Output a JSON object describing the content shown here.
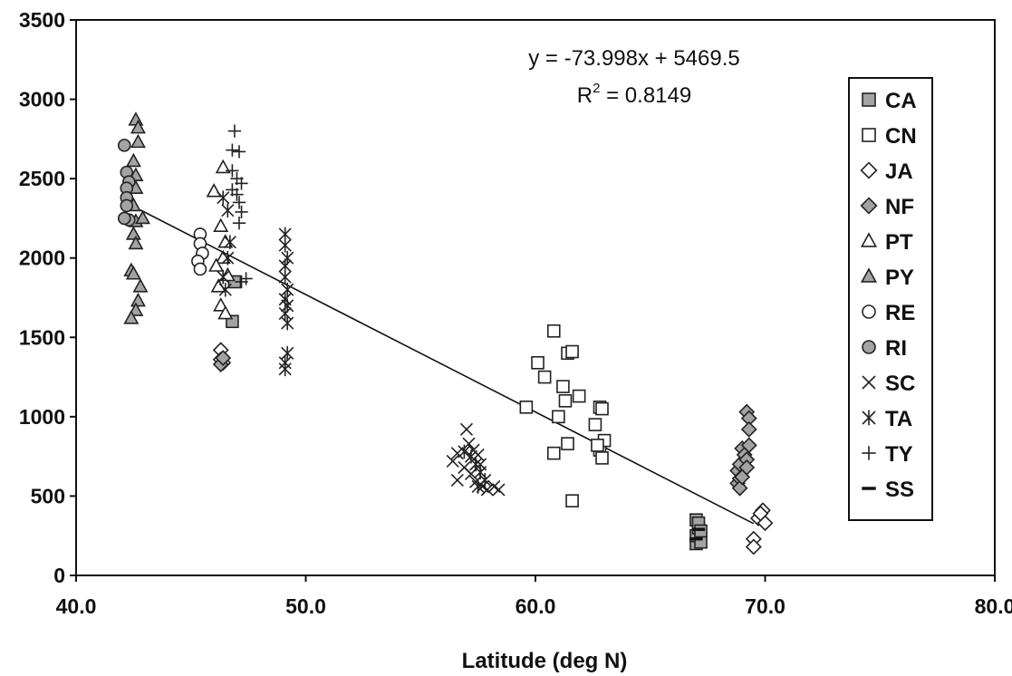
{
  "chart_data": {
    "type": "scatter",
    "title": "",
    "xlabel": "Latitude (deg N)",
    "ylabel": "",
    "xlim": [
      40,
      80
    ],
    "ylim": [
      0,
      3500
    ],
    "x_ticks": [
      "40.0",
      "50.0",
      "60.0",
      "70.0",
      "80.0"
    ],
    "y_ticks": [
      "0",
      "500",
      "1000",
      "1500",
      "2000",
      "2500",
      "3000",
      "3500"
    ],
    "x_tick_values": [
      40,
      50,
      60,
      70,
      80
    ],
    "y_tick_values": [
      0,
      500,
      1000,
      1500,
      2000,
      2500,
      3000,
      3500
    ],
    "grid": false,
    "legend_position": "right",
    "trendline": {
      "slope": -73.998,
      "intercept": 5469.5,
      "x_range": [
        42.8,
        69.5
      ],
      "equation_label": "y = -73.998x + 5469.5",
      "r2_label_prefix": "R",
      "r2_label_sup": "2",
      "r2_label_suffix": " = 0.8149"
    },
    "series": [
      {
        "name": "CA",
        "marker": "square-filled",
        "points": [
          [
            46.8,
            1600
          ],
          [
            46.9,
            1850
          ],
          [
            67.0,
            200
          ],
          [
            67.0,
            250
          ],
          [
            67.1,
            300
          ],
          [
            67.0,
            350
          ],
          [
            67.2,
            210
          ],
          [
            67.1,
            330
          ],
          [
            67.2,
            280
          ]
        ]
      },
      {
        "name": "CN",
        "marker": "square-open",
        "points": [
          [
            59.6,
            1060
          ],
          [
            60.1,
            1340
          ],
          [
            60.4,
            1250
          ],
          [
            60.8,
            1540
          ],
          [
            61.0,
            1000
          ],
          [
            60.8,
            770
          ],
          [
            61.4,
            830
          ],
          [
            61.2,
            1190
          ],
          [
            61.3,
            1100
          ],
          [
            61.4,
            1400
          ],
          [
            61.6,
            1410
          ],
          [
            61.9,
            1130
          ],
          [
            61.6,
            470
          ],
          [
            62.6,
            950
          ],
          [
            62.8,
            1060
          ],
          [
            62.9,
            1050
          ],
          [
            62.8,
            790
          ],
          [
            62.9,
            740
          ],
          [
            63.0,
            850
          ],
          [
            62.7,
            820
          ]
        ]
      },
      {
        "name": "JA",
        "marker": "diamond-open",
        "points": [
          [
            46.3,
            1420
          ],
          [
            46.3,
            1360
          ],
          [
            69.7,
            360
          ],
          [
            69.9,
            410
          ],
          [
            70.0,
            330
          ],
          [
            69.5,
            230
          ],
          [
            69.5,
            180
          ],
          [
            69.8,
            390
          ],
          [
            46.4,
            1340
          ]
        ]
      },
      {
        "name": "NF",
        "marker": "diamond-filled",
        "points": [
          [
            46.3,
            1330
          ],
          [
            46.4,
            1370
          ],
          [
            68.8,
            660
          ],
          [
            68.9,
            700
          ],
          [
            68.8,
            580
          ],
          [
            68.9,
            610
          ],
          [
            69.0,
            800
          ],
          [
            69.1,
            760
          ],
          [
            69.2,
            730
          ],
          [
            69.2,
            1030
          ],
          [
            69.3,
            990
          ],
          [
            69.3,
            920
          ],
          [
            69.3,
            820
          ],
          [
            69.2,
            680
          ],
          [
            68.9,
            550
          ],
          [
            69.0,
            620
          ]
        ]
      },
      {
        "name": "PT",
        "marker": "triangle-open",
        "points": [
          [
            46.0,
            2420
          ],
          [
            46.4,
            2570
          ],
          [
            46.3,
            2200
          ],
          [
            46.5,
            2100
          ],
          [
            46.2,
            1820
          ],
          [
            46.3,
            1700
          ],
          [
            46.5,
            1650
          ],
          [
            46.4,
            2000
          ],
          [
            46.6,
            1890
          ],
          [
            46.1,
            1950
          ]
        ]
      },
      {
        "name": "PY",
        "marker": "triangle-filled",
        "points": [
          [
            42.6,
            2870
          ],
          [
            42.7,
            2820
          ],
          [
            42.7,
            2730
          ],
          [
            42.5,
            2610
          ],
          [
            42.6,
            2520
          ],
          [
            42.6,
            2440
          ],
          [
            42.5,
            2330
          ],
          [
            42.6,
            2230
          ],
          [
            42.5,
            2150
          ],
          [
            42.6,
            2090
          ],
          [
            42.4,
            1920
          ],
          [
            42.5,
            1900
          ],
          [
            42.8,
            1820
          ],
          [
            42.7,
            1730
          ],
          [
            42.6,
            1670
          ],
          [
            42.4,
            1620
          ],
          [
            42.9,
            2250
          ]
        ]
      },
      {
        "name": "RE",
        "marker": "circle-open",
        "points": [
          [
            45.4,
            2150
          ],
          [
            45.4,
            2090
          ],
          [
            45.5,
            2030
          ],
          [
            45.3,
            1980
          ],
          [
            45.4,
            1930
          ]
        ]
      },
      {
        "name": "RI",
        "marker": "circle-filled",
        "points": [
          [
            42.1,
            2710
          ],
          [
            42.2,
            2540
          ],
          [
            42.3,
            2480
          ],
          [
            42.2,
            2440
          ],
          [
            42.2,
            2380
          ],
          [
            42.2,
            2330
          ],
          [
            42.3,
            2240
          ],
          [
            42.1,
            2250
          ]
        ]
      },
      {
        "name": "SC",
        "marker": "x",
        "points": [
          [
            56.4,
            720
          ],
          [
            56.6,
            770
          ],
          [
            57.0,
            920
          ],
          [
            57.1,
            830
          ],
          [
            56.9,
            680
          ],
          [
            57.3,
            790
          ],
          [
            57.5,
            760
          ],
          [
            57.6,
            700
          ],
          [
            57.2,
            640
          ],
          [
            57.4,
            590
          ],
          [
            57.7,
            560
          ],
          [
            57.9,
            540
          ],
          [
            58.2,
            560
          ],
          [
            58.4,
            540
          ],
          [
            56.6,
            600
          ]
        ]
      },
      {
        "name": "TA",
        "marker": "asterisk",
        "points": [
          [
            46.6,
            2000
          ],
          [
            46.7,
            2100
          ],
          [
            46.4,
            2380
          ],
          [
            46.6,
            2300
          ],
          [
            49.1,
            2150
          ],
          [
            49.1,
            2080
          ],
          [
            49.2,
            2000
          ],
          [
            49.1,
            1950
          ],
          [
            49.1,
            1880
          ],
          [
            49.2,
            1800
          ],
          [
            49.1,
            1740
          ],
          [
            49.2,
            1700
          ],
          [
            49.1,
            1650
          ],
          [
            49.2,
            1590
          ],
          [
            49.2,
            1400
          ],
          [
            49.1,
            1340
          ],
          [
            49.1,
            1300
          ],
          [
            56.9,
            780
          ],
          [
            57.2,
            750
          ],
          [
            57.4,
            700
          ],
          [
            57.6,
            650
          ],
          [
            57.8,
            600
          ],
          [
            57.5,
            560
          ],
          [
            46.5,
            1800
          ],
          [
            46.4,
            1880
          ]
        ]
      },
      {
        "name": "TY",
        "marker": "plus",
        "points": [
          [
            46.9,
            2800
          ],
          [
            46.8,
            2680
          ],
          [
            47.1,
            2670
          ],
          [
            46.8,
            2550
          ],
          [
            47.0,
            2500
          ],
          [
            47.2,
            2470
          ],
          [
            47.0,
            2400
          ],
          [
            47.1,
            2350
          ],
          [
            47.2,
            2290
          ],
          [
            47.1,
            2220
          ],
          [
            47.4,
            1870
          ],
          [
            47.2,
            1850
          ],
          [
            46.8,
            2430
          ]
        ]
      },
      {
        "name": "SS",
        "marker": "dash",
        "points": [
          [
            67.1,
            290
          ],
          [
            67.0,
            230
          ]
        ]
      }
    ]
  }
}
